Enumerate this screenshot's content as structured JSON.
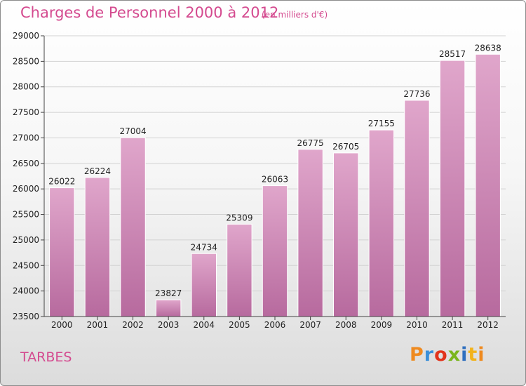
{
  "header": {
    "title": "Charges de Personnel 2000 à 2012",
    "subtitle": "(en milliers d'€)"
  },
  "footer": {
    "city": "TARBES",
    "logo_text": "Proxiti",
    "logo_colors": [
      "#ef8a1f",
      "#3a8fd8",
      "#e2331b",
      "#7ab51d",
      "#2f6fbf",
      "#f2b31b",
      "#ef8a1f"
    ]
  },
  "colors": {
    "bar_top": "#e0a6cb",
    "bar_bottom": "#b76a9e",
    "grid": "#d2d2d2",
    "axis": "#444444",
    "accent": "#d44a8f"
  },
  "chart_data": {
    "type": "bar",
    "title": "Charges de Personnel 2000 à 2012",
    "subtitle": "(en milliers d'€)",
    "categories": [
      "2000",
      "2001",
      "2002",
      "2003",
      "2004",
      "2005",
      "2006",
      "2007",
      "2008",
      "2009",
      "2010",
      "2011",
      "2012"
    ],
    "values": [
      26022,
      26224,
      27004,
      23827,
      24734,
      25309,
      26063,
      26775,
      26705,
      27155,
      27736,
      28517,
      28638
    ],
    "ylim": [
      23500,
      29000
    ],
    "yticks": [
      23500,
      24000,
      24500,
      25000,
      25500,
      26000,
      26500,
      27000,
      27500,
      28000,
      28500,
      29000
    ],
    "grid": true,
    "legend": "none"
  }
}
